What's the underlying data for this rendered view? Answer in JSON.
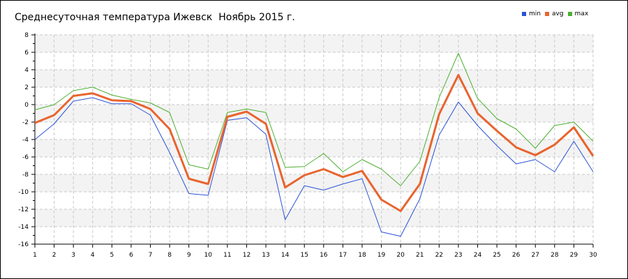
{
  "chart_data": {
    "type": "line",
    "title": "Среднесуточная температура Ижевск  Ноябрь 2015 г.",
    "xlabel": "",
    "ylabel": "",
    "x": [
      1,
      2,
      3,
      4,
      5,
      6,
      7,
      8,
      9,
      10,
      11,
      12,
      13,
      14,
      15,
      16,
      17,
      18,
      19,
      20,
      21,
      22,
      23,
      24,
      25,
      26,
      27,
      28,
      29,
      30
    ],
    "ylim": [
      -16,
      8
    ],
    "yticks": [
      -16,
      -14,
      -12,
      -10,
      -8,
      -6,
      -4,
      -2,
      0,
      2,
      4,
      6,
      8
    ],
    "grid": true,
    "legend_position": "top-right",
    "series": [
      {
        "name": "min",
        "color": "#2a52d6",
        "values": [
          -4,
          -2.2,
          0.4,
          0.8,
          0.1,
          0.1,
          -1.2,
          -5.5,
          -10.2,
          -10.4,
          -1.8,
          -1.5,
          -3.4,
          -13.2,
          -9.3,
          -9.8,
          -9.1,
          -8.5,
          -14.6,
          -15.1,
          -10.8,
          -3.5,
          0.3,
          -2.4,
          -4.7,
          -6.8,
          -6.3,
          -7.7,
          -4.2,
          -7.7
        ]
      },
      {
        "name": "avg",
        "color": "#e8642e",
        "values": [
          -2.1,
          -1.2,
          1,
          1.3,
          0.5,
          0.4,
          -0.5,
          -2.8,
          -8.5,
          -9.1,
          -1.4,
          -0.8,
          -2.2,
          -9.5,
          -8.1,
          -7.4,
          -8.3,
          -7.6,
          -10.9,
          -12.2,
          -9.1,
          -1.1,
          3.4,
          -1,
          -3,
          -4.9,
          -5.8,
          -4.6,
          -2.6,
          -5.9
        ]
      },
      {
        "name": "max",
        "color": "#4caf30",
        "values": [
          -0.6,
          0,
          1.6,
          2,
          1.1,
          0.6,
          0.2,
          -0.9,
          -6.9,
          -7.4,
          -0.9,
          -0.5,
          -0.9,
          -7.2,
          -7.1,
          -5.6,
          -7.7,
          -6.3,
          -7.4,
          -9.3,
          -6.5,
          0.8,
          5.9,
          0.7,
          -1.6,
          -2.8,
          -5,
          -2.4,
          -2,
          -4.2
        ]
      }
    ]
  }
}
